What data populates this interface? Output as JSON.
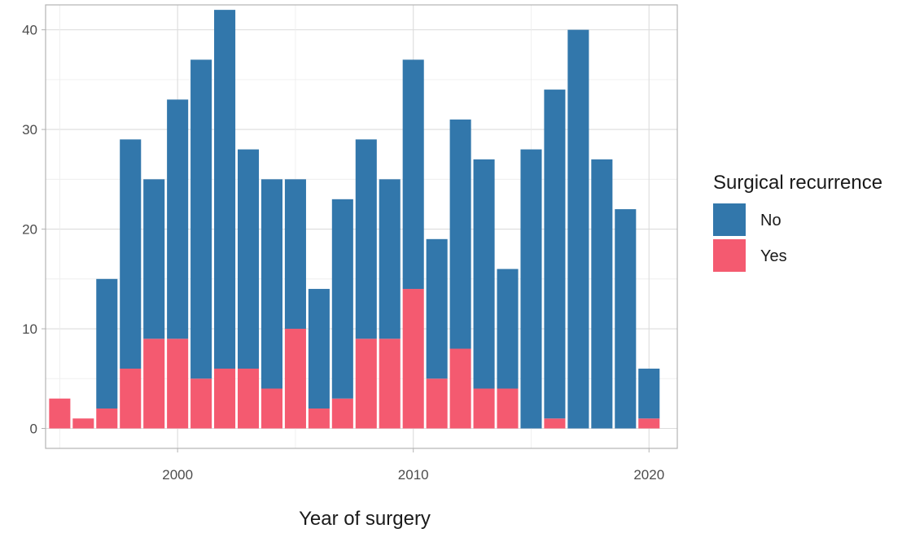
{
  "chart_data": {
    "type": "bar",
    "stacked": true,
    "xlabel": "Year of surgery",
    "ylabel": "",
    "xlim": [
      1994.4,
      2021.2
    ],
    "ylim": [
      -2,
      42.5
    ],
    "x_ticks": [
      2000,
      2010,
      2020
    ],
    "y_ticks": [
      0,
      10,
      20,
      30,
      40
    ],
    "grid": true,
    "legend": {
      "title": "Surgical recurrence",
      "position": "right"
    },
    "years": [
      1995,
      1996,
      1997,
      1998,
      1999,
      2000,
      2001,
      2002,
      2003,
      2004,
      2005,
      2006,
      2007,
      2008,
      2009,
      2010,
      2011,
      2012,
      2013,
      2014,
      2015,
      2016,
      2017,
      2018,
      2019,
      2020
    ],
    "series": [
      {
        "name": "No",
        "color": "#3277ab",
        "values": [
          0,
          0,
          13,
          23,
          16,
          24,
          32,
          36,
          22,
          21,
          15,
          12,
          20,
          20,
          16,
          23,
          14,
          23,
          23,
          12,
          28,
          33,
          40,
          27,
          22,
          5
        ]
      },
      {
        "name": "Yes",
        "color": "#f45a70",
        "values": [
          3,
          1,
          2,
          6,
          9,
          9,
          5,
          6,
          6,
          4,
          10,
          2,
          3,
          9,
          9,
          14,
          5,
          8,
          4,
          4,
          0,
          1,
          0,
          0,
          0,
          1
        ]
      }
    ],
    "totals": [
      3,
      1,
      15,
      29,
      25,
      33,
      37,
      42,
      28,
      25,
      25,
      14,
      23,
      29,
      25,
      37,
      19,
      31,
      27,
      16,
      28,
      34,
      40,
      27,
      22,
      6
    ]
  }
}
